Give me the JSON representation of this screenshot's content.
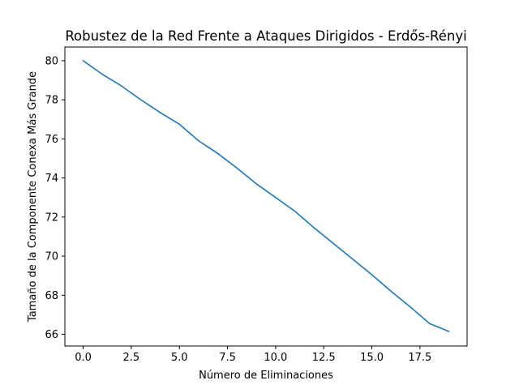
{
  "chart_data": {
    "type": "line",
    "title": "Robustez de la Red Frente a Ataques Dirigidos - Erdős-Rényi",
    "xlabel": "Número de Eliminaciones",
    "ylabel": "Tamaño de la Componente Conexa Más Grande",
    "xlim": [
      -0.95,
      19.95
    ],
    "ylim": [
      65.4,
      80.7
    ],
    "xticks": [
      0.0,
      2.5,
      5.0,
      7.5,
      10.0,
      12.5,
      15.0,
      17.5
    ],
    "xtick_labels": [
      "0.0",
      "2.5",
      "5.0",
      "7.5",
      "10.0",
      "12.5",
      "15.0",
      "17.5"
    ],
    "yticks": [
      66,
      68,
      70,
      72,
      74,
      76,
      78,
      80
    ],
    "ytick_labels": [
      "66",
      "68",
      "70",
      "72",
      "74",
      "76",
      "78",
      "80"
    ],
    "grid": false,
    "series": [
      {
        "color": "#1f77b4",
        "x": [
          0,
          1,
          2,
          3,
          4,
          5,
          6,
          7,
          8,
          9,
          10,
          11,
          12,
          13,
          14,
          15,
          16,
          17,
          18,
          19
        ],
        "values": [
          80.0,
          79.3,
          78.7,
          78.0,
          77.35,
          76.75,
          75.9,
          75.25,
          74.5,
          73.7,
          73.0,
          72.3,
          71.45,
          70.65,
          69.85,
          69.05,
          68.2,
          67.4,
          66.55,
          66.15
        ]
      }
    ]
  }
}
